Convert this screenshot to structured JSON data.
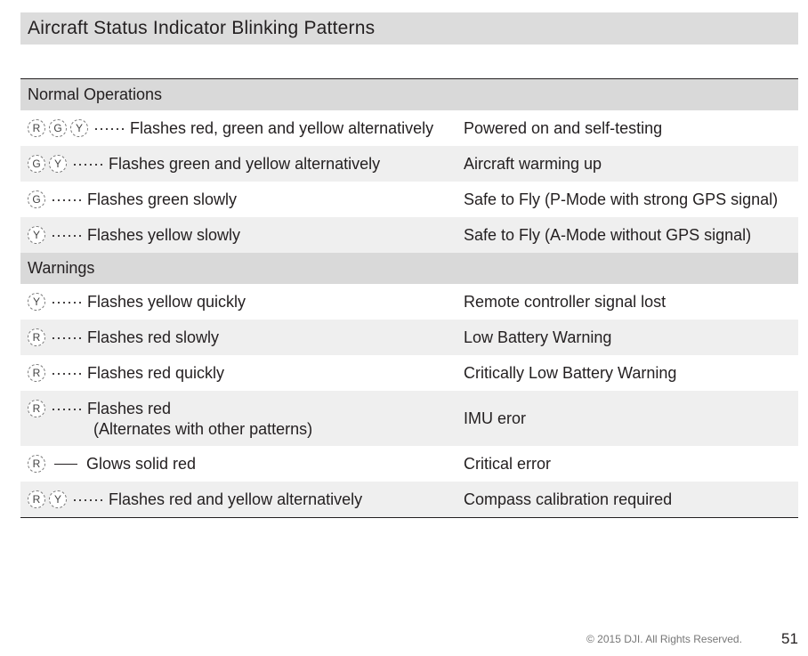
{
  "page": {
    "title": "Aircraft Status Indicator Blinking Patterns",
    "footer": "© 2015 DJI. All Rights Reserved.",
    "page_number": "51"
  },
  "sections": [
    {
      "label": "Normal Operations",
      "rows": [
        {
          "leds": [
            "R",
            "G",
            "Y"
          ],
          "connector": "dots",
          "dots": "······",
          "pattern": "Flashes red, green and yellow alternatively",
          "meaning": "Powered on and self-testing"
        },
        {
          "leds": [
            "G",
            "Y"
          ],
          "connector": "dots",
          "dots": "······",
          "pattern": "Flashes green and yellow alternatively",
          "meaning": "Aircraft warming up"
        },
        {
          "leds": [
            "G"
          ],
          "connector": "dots",
          "dots": "······",
          "pattern": "Flashes green slowly",
          "meaning": "Safe to Fly (P-Mode with strong GPS signal)"
        },
        {
          "leds": [
            "Y"
          ],
          "connector": "dots",
          "dots": "······",
          "pattern": "Flashes yellow slowly",
          "meaning": "Safe to Fly (A-Mode without GPS signal)"
        }
      ]
    },
    {
      "label": "Warnings",
      "rows": [
        {
          "leds": [
            "Y"
          ],
          "connector": "dots",
          "dots": "······",
          "pattern": "Flashes yellow quickly",
          "meaning": "Remote controller signal lost"
        },
        {
          "leds": [
            "R"
          ],
          "connector": "dots",
          "dots": "······",
          "pattern": "Flashes red slowly",
          "meaning": "Low Battery Warning"
        },
        {
          "leds": [
            "R"
          ],
          "connector": "dots",
          "dots": "······",
          "pattern": "Flashes red quickly",
          "meaning": "Critically Low Battery Warning"
        },
        {
          "leds": [
            "R"
          ],
          "connector": "dots",
          "dots": "······",
          "pattern": "Flashes red",
          "note": "(Alternates with other patterns)",
          "meaning": "IMU eror"
        },
        {
          "leds": [
            "R"
          ],
          "connector": "line",
          "pattern": "Glows solid red",
          "meaning": "Critical error"
        },
        {
          "leds": [
            "R",
            "Y"
          ],
          "connector": "dots",
          "dots": "······",
          "pattern": "Flashes red and yellow alternatively",
          "meaning": "Compass calibration required"
        }
      ]
    }
  ]
}
